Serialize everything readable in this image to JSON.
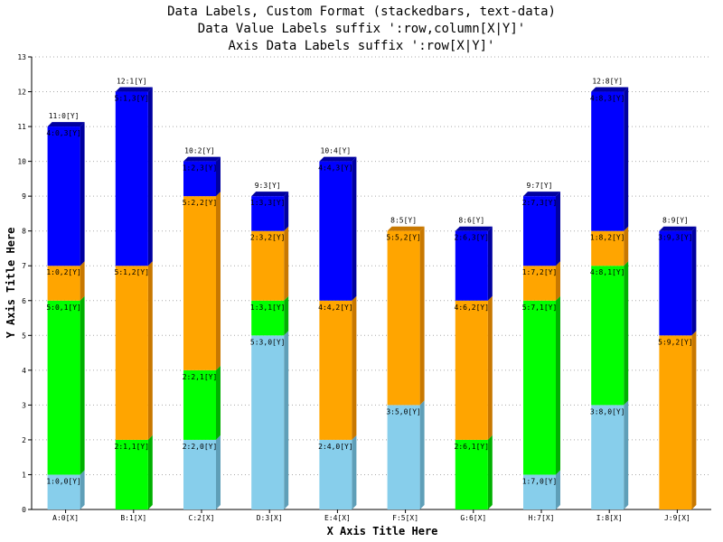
{
  "chart_data": {
    "type": "bar",
    "stacked": true,
    "title_lines": [
      "Data Labels, Custom Format (stackedbars, text-data)",
      "Data Value Labels suffix ':row,column[X|Y]'",
      "Axis Data Labels suffix ':row[X|Y]'"
    ],
    "xlabel": "X Axis Title Here",
    "ylabel": "Y Axis Title Here",
    "ylim": [
      0,
      13
    ],
    "yticks": [
      "0",
      "1",
      "2",
      "3",
      "4",
      "5",
      "6",
      "7",
      "8",
      "9",
      "10",
      "11",
      "12",
      "13"
    ],
    "categories": [
      "A:0[X]",
      "B:1[X]",
      "C:2[X]",
      "D:3[X]",
      "E:4[X]",
      "F:5[X]",
      "G:6[X]",
      "H:7[X]",
      "I:8[X]",
      "J:9[X]"
    ],
    "grid": true,
    "colors": {
      "series": [
        "#87ceeb",
        "#00ff00",
        "#ffa500",
        "#0000ff"
      ],
      "series_side": [
        "#5f9fb8",
        "#00b000",
        "#c87800",
        "#0000a0"
      ],
      "grid": "#aaaaaa",
      "axis": "#000000"
    },
    "series": [
      {
        "values": [
          1,
          0,
          2,
          5,
          2,
          3,
          0,
          1,
          3,
          0
        ],
        "labels": [
          "1:0,0[Y]",
          "",
          "2:2,0[Y]",
          "5:3,0[Y]",
          "2:4,0[Y]",
          "3:5,0[Y]",
          "",
          "1:7,0[Y]",
          "3:8,0[Y]",
          ""
        ]
      },
      {
        "values": [
          5,
          2,
          2,
          1,
          0,
          0,
          2,
          5,
          4,
          0
        ],
        "labels": [
          "5:0,1[Y]",
          "2:1,1[Y]",
          "2:2,1[Y]",
          "1:3,1[Y]",
          "",
          "",
          "2:6,1[Y]",
          "5:7,1[Y]",
          "4:8,1[Y]",
          ""
        ]
      },
      {
        "values": [
          1,
          5,
          5,
          2,
          4,
          5,
          4,
          1,
          1,
          5
        ],
        "labels": [
          "1:0,2[Y]",
          "5:1,2[Y]",
          "5:2,2[Y]",
          "2:3,2[Y]",
          "4:4,2[Y]",
          "5:5,2[Y]",
          "4:6,2[Y]",
          "1:7,2[Y]",
          "1:8,2[Y]",
          "5:9,2[Y]"
        ]
      },
      {
        "values": [
          4,
          5,
          1,
          1,
          4,
          0,
          2,
          2,
          4,
          3
        ],
        "labels": [
          "4:0,3[Y]",
          "5:1,3[Y]",
          "1:2,3[Y]",
          "1:3,3[Y]",
          "4:4,3[Y]",
          "",
          "2:6,3[Y]",
          "2:7,3[Y]",
          "4:8,3[Y]",
          "3:9,3[Y]"
        ]
      }
    ],
    "totals": [
      11,
      12,
      10,
      9,
      10,
      8,
      8,
      9,
      12,
      8
    ],
    "total_labels": [
      "11:0[Y]",
      "12:1[Y]",
      "10:2[Y]",
      "9:3[Y]",
      "10:4[Y]",
      "8:5[Y]",
      "8:6[Y]",
      "9:7[Y]",
      "12:8[Y]",
      "8:9[Y]"
    ]
  }
}
